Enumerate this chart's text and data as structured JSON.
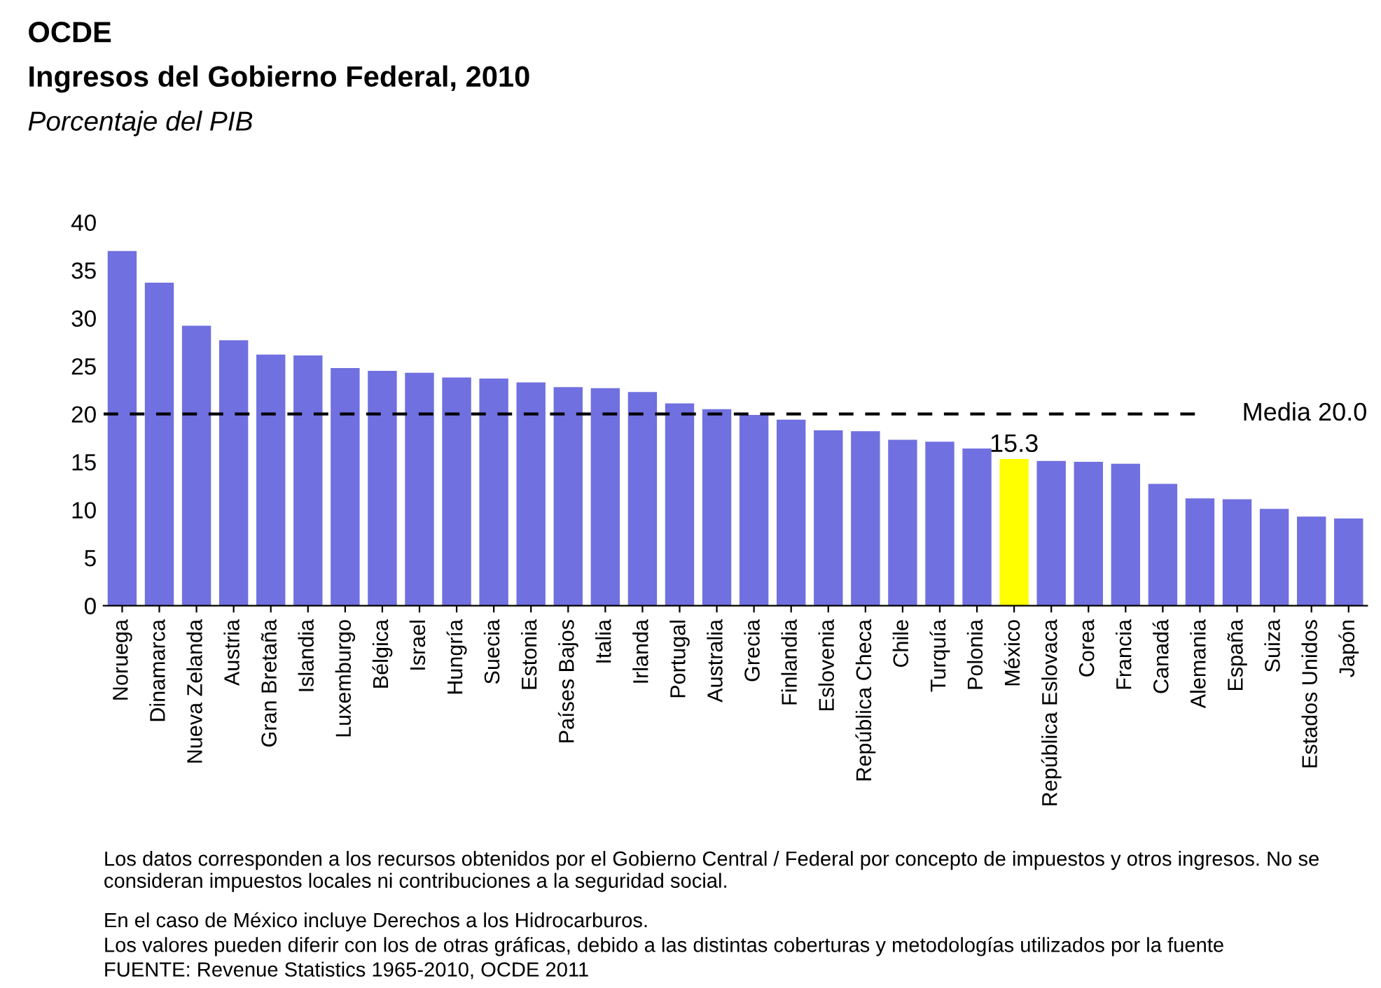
{
  "chart_data": {
    "type": "bar",
    "title": "OCDE",
    "subtitle": "Ingresos del Gobierno Federal, 2010",
    "ylabel": "Porcentaje del PIB",
    "categories": [
      "Noruega",
      "Dinamarca",
      "Nueva Zelanda",
      "Austria",
      "Gran Bretaña",
      "Islandia",
      "Luxemburgo",
      "Bélgica",
      "Israel",
      "Hungría",
      "Suecia",
      "Estonia",
      "Países Bajos",
      "Italia",
      "Irlanda",
      "Portugal",
      "Australia",
      "Grecia",
      "Finlandia",
      "Eslovenia",
      "República Checa",
      "Chile",
      "Turquía",
      "Polonia",
      "México",
      "República Eslovaca",
      "Corea",
      "Francia",
      "Canadá",
      "Alemania",
      "España",
      "Suiza",
      "Estados Unidos",
      "Japón"
    ],
    "values": [
      37.0,
      33.7,
      29.2,
      27.7,
      26.2,
      26.1,
      24.8,
      24.5,
      24.3,
      23.8,
      23.7,
      23.3,
      22.8,
      22.7,
      22.3,
      21.1,
      20.5,
      19.9,
      19.4,
      18.3,
      18.2,
      17.3,
      17.1,
      16.4,
      15.3,
      15.1,
      15.0,
      14.8,
      12.7,
      11.2,
      11.1,
      10.1,
      9.3,
      9.1
    ],
    "colors": [
      "#7070e0",
      "#7070e0",
      "#7070e0",
      "#7070e0",
      "#7070e0",
      "#7070e0",
      "#7070e0",
      "#7070e0",
      "#7070e0",
      "#7070e0",
      "#7070e0",
      "#7070e0",
      "#7070e0",
      "#7070e0",
      "#7070e0",
      "#7070e0",
      "#7070e0",
      "#7070e0",
      "#7070e0",
      "#7070e0",
      "#7070e0",
      "#7070e0",
      "#7070e0",
      "#7070e0",
      "#ffff00",
      "#7070e0",
      "#7070e0",
      "#7070e0",
      "#7070e0",
      "#7070e0",
      "#7070e0",
      "#7070e0",
      "#7070e0",
      "#7070e0"
    ],
    "value_labels": [
      null,
      null,
      null,
      null,
      null,
      null,
      null,
      null,
      null,
      null,
      null,
      null,
      null,
      null,
      null,
      null,
      null,
      null,
      null,
      null,
      null,
      null,
      null,
      null,
      "15.3",
      null,
      null,
      null,
      null,
      null,
      null,
      null,
      null,
      null
    ],
    "ylim": [
      0,
      40
    ],
    "yticks": [
      0,
      5,
      10,
      15,
      20,
      25,
      30,
      35,
      40
    ],
    "grid": false,
    "ref_lines": [
      {
        "axis": "y",
        "value": 20.0,
        "label": "Media 20.0",
        "color": "#000000",
        "line_style": "dashed"
      }
    ],
    "annotations": [
      "Los datos corresponden a los recursos obtenidos por el Gobierno Central / Federal por concepto de impuestos y otros ingresos. No se consideran impuestos locales ni contribuciones a la seguridad social.",
      "En el caso de México incluye Derechos a los Hidrocarburos.",
      "Los valores pueden diferir con los de otras gráficas, debido a las distintas coberturas y metodologías utilizados por la fuente",
      "FUENTE: Revenue Statistics 1965-2010, OCDE 2011"
    ]
  }
}
